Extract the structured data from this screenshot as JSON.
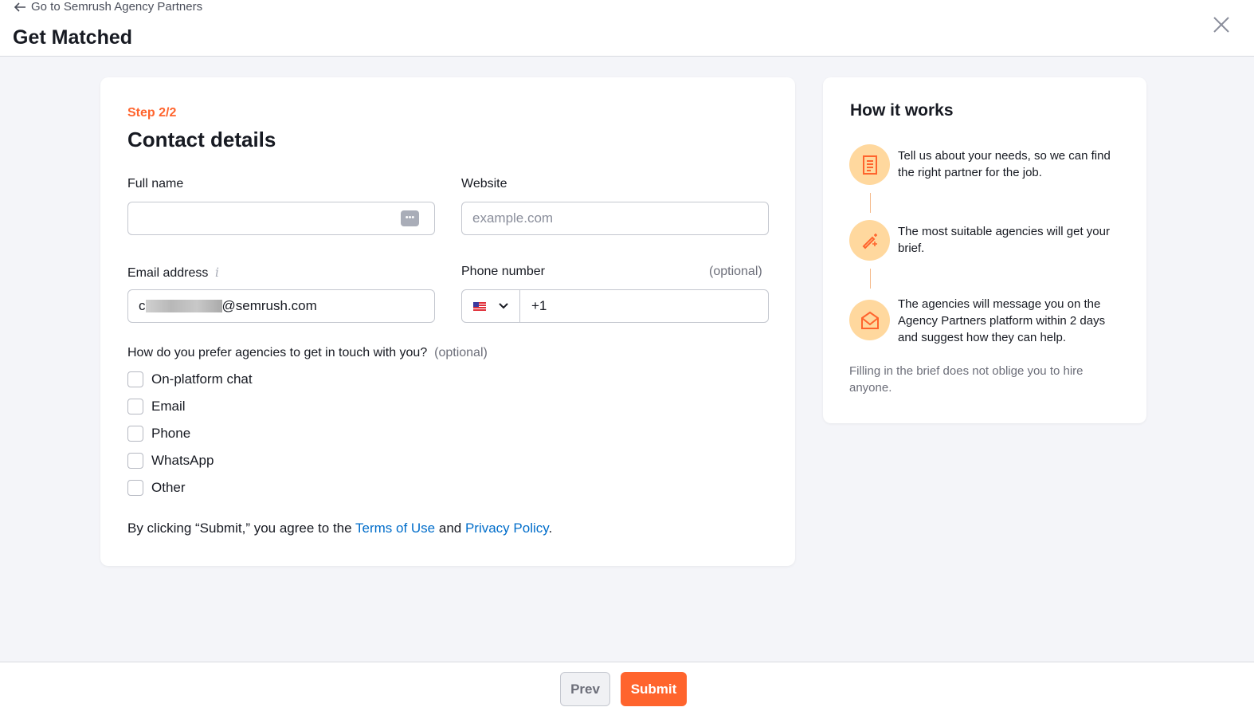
{
  "header": {
    "back_label": "Go to Semrush Agency Partners",
    "title": "Get Matched"
  },
  "form": {
    "step": "Step 2/2",
    "title": "Contact details",
    "full_name": {
      "label": "Full name",
      "value": ""
    },
    "website": {
      "label": "Website",
      "placeholder": "example.com"
    },
    "email": {
      "label": "Email address",
      "value_prefix": "c",
      "value_suffix": "@semrush.com"
    },
    "phone": {
      "label": "Phone number",
      "optional": "(optional)",
      "country": "US",
      "value": "+1"
    },
    "contact_question": "How do you prefer agencies to get in touch with you?",
    "contact_optional": "(optional)",
    "options": [
      {
        "label": "On-platform chat",
        "checked": false
      },
      {
        "label": "Email",
        "checked": false
      },
      {
        "label": "Phone",
        "checked": false
      },
      {
        "label": "WhatsApp",
        "checked": false
      },
      {
        "label": "Other",
        "checked": false
      }
    ],
    "terms": {
      "pre": "By clicking “Submit,” you agree to the ",
      "terms": "Terms of Use",
      "and": " and ",
      "privacy": "Privacy Policy",
      "end": "."
    }
  },
  "how": {
    "title": "How it works",
    "steps": [
      {
        "icon": "document-icon",
        "text": "Tell us about your needs, so we can find the right partner for the job."
      },
      {
        "icon": "magic-wand-icon",
        "text": "The most suitable agencies will get your brief."
      },
      {
        "icon": "envelope-open-icon",
        "text": "The agencies will message you on the Agency Partners platform within 2 days and suggest how they can help."
      }
    ],
    "note": "Filling in the brief does not oblige you to hire anyone."
  },
  "footer": {
    "prev": "Prev",
    "submit": "Submit"
  },
  "colors": {
    "accent": "#ff642d",
    "link": "#006dca"
  }
}
